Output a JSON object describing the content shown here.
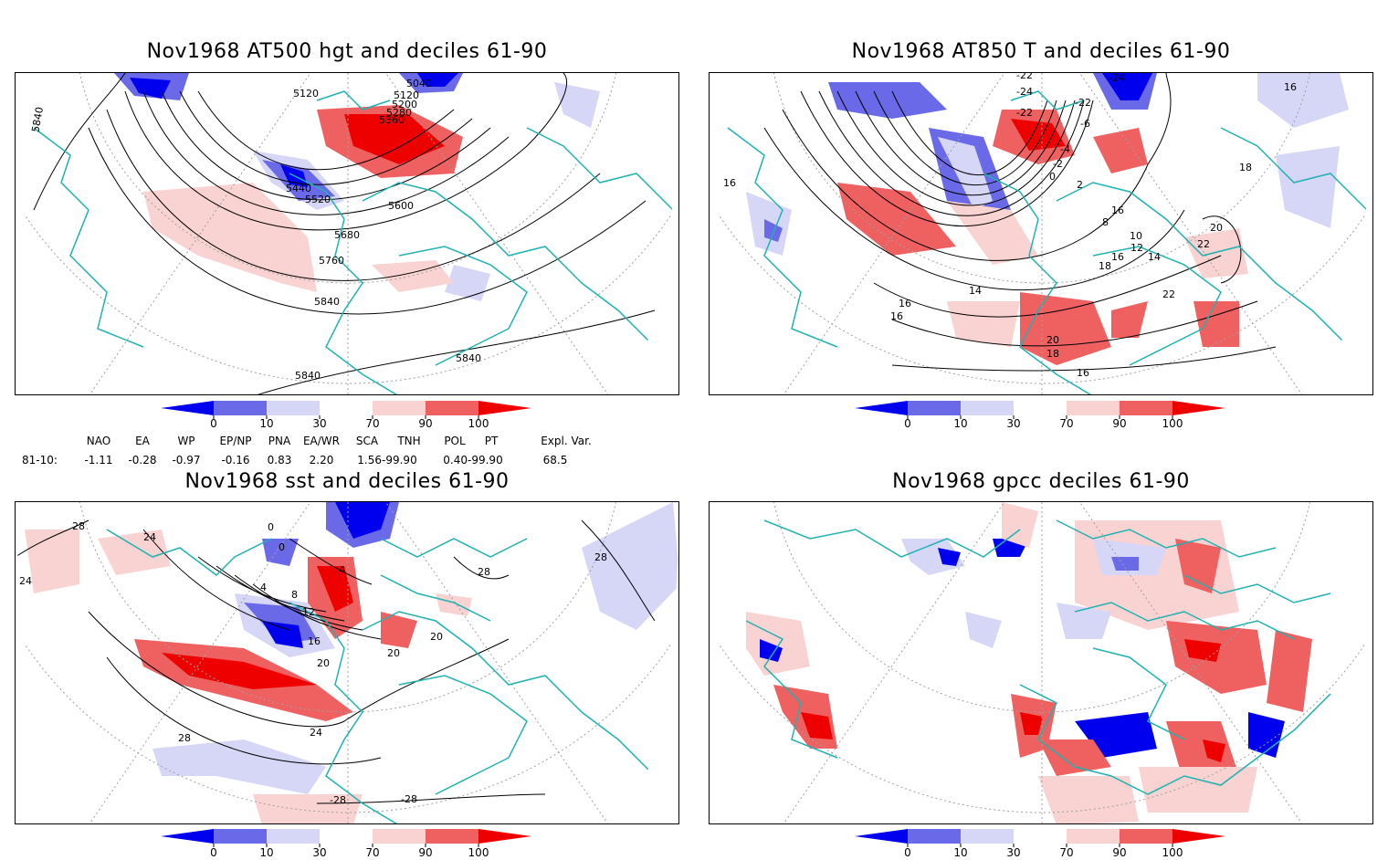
{
  "colors": {
    "dark_blue": "#0000ee",
    "mid_blue": "#6a6ae8",
    "light_blue": "#d6d6f6",
    "light_red": "#f9d2d2",
    "mid_red": "#ef6060",
    "dark_red": "#ee0000",
    "coast": "#20b2b2",
    "contour": "#000000",
    "grid": "#a0a0a0"
  },
  "colorbar": {
    "ticks": [
      "0",
      "10",
      "30",
      "70",
      "90",
      "100"
    ]
  },
  "panels": [
    {
      "id": "tl",
      "title": "Nov1968 AT500 hgt and deciles 61-90",
      "contour_labels": [
        "5840",
        "5120",
        "5040",
        "5120",
        "5200",
        "5280",
        "5360",
        "5440",
        "5520",
        "5600",
        "5680",
        "5760",
        "5840",
        "5840",
        "5840"
      ]
    },
    {
      "id": "tr",
      "title": "Nov1968 AT850 T and deciles 61-90",
      "contour_labels": [
        "-22",
        "-24",
        "-24",
        "-22",
        "-22",
        "-6",
        "-4",
        "-2",
        "0",
        "2",
        "16",
        "16",
        "16",
        "18",
        "8",
        "10",
        "12",
        "14",
        "16",
        "18",
        "20",
        "22",
        "22",
        "14",
        "16",
        "16",
        "20",
        "18",
        "16"
      ]
    },
    {
      "id": "bl",
      "title": "Nov1968 sst and deciles 61-90",
      "contour_labels": [
        "28",
        "24",
        "24",
        "0",
        "0",
        "4",
        "4",
        "8",
        "12",
        "16",
        "20",
        "20",
        "20",
        "24",
        "28",
        "28",
        "-28",
        "-28",
        "28"
      ]
    },
    {
      "id": "br",
      "title": "Nov1968 gpcc deciles 61-90",
      "contour_labels": []
    }
  ],
  "indices": {
    "headers": [
      "NAO",
      "EA",
      "WP",
      "EP/NP",
      "PNA",
      "EA/WR",
      "SCA",
      "TNH",
      "POL",
      "PT",
      "Expl. Var."
    ],
    "row_label": "81-10:",
    "values": [
      "-1.11",
      "-0.28",
      "-0.97",
      "-0.16",
      "0.83",
      "2.20",
      "1.56-99.90",
      "0.40-99.90",
      "68.5"
    ]
  }
}
